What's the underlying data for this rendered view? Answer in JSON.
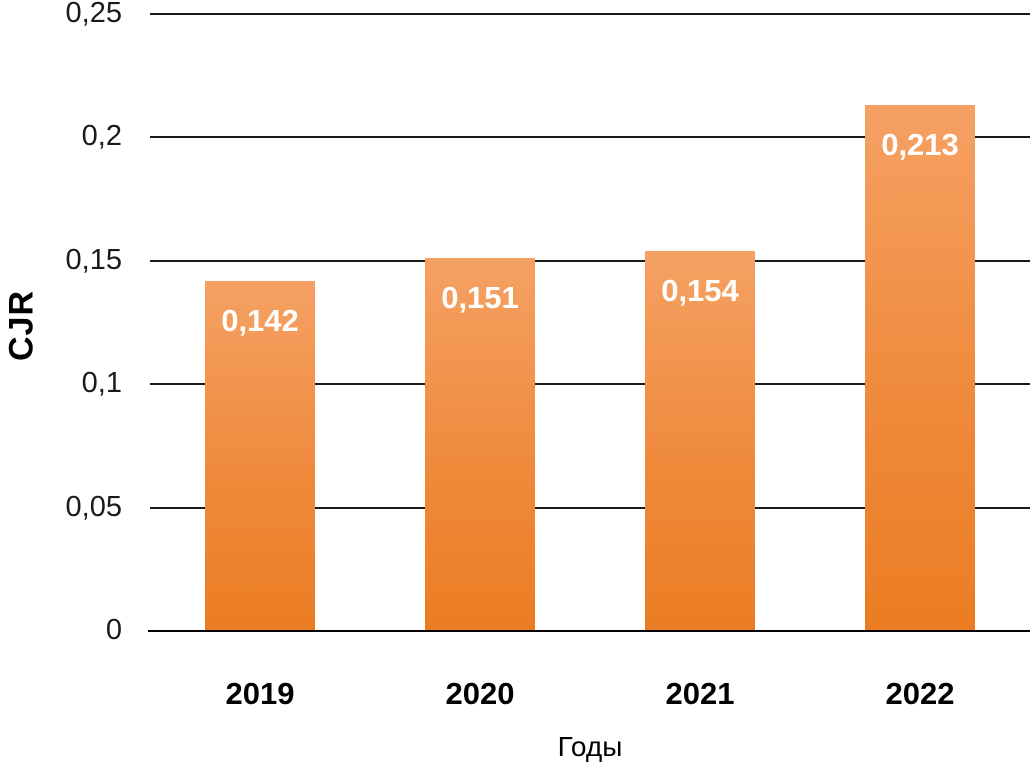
{
  "chart_data": {
    "type": "bar",
    "title": "",
    "xlabel": "Годы",
    "ylabel": "CJR",
    "categories": [
      "2019",
      "2020",
      "2021",
      "2022"
    ],
    "values": [
      0.142,
      0.151,
      0.154,
      0.213
    ],
    "value_labels": [
      "0,142",
      "0,151",
      "0,154",
      "0,213"
    ],
    "yticks": [
      {
        "value": 0,
        "label": "0"
      },
      {
        "value": 0.05,
        "label": "0,05"
      },
      {
        "value": 0.1,
        "label": "0,1"
      },
      {
        "value": 0.15,
        "label": "0,15"
      },
      {
        "value": 0.2,
        "label": "0,2"
      },
      {
        "value": 0.25,
        "label": "0,25"
      }
    ],
    "ylim": [
      0,
      0.25
    ],
    "grid": true,
    "legend_position": "none",
    "decimal_separator": ",",
    "colors": {
      "bar_gradient_top": "#F5A164",
      "bar_gradient_bottom": "#EC7C22",
      "bar_value_label": "#FFFFFF",
      "gridline": "#1A1A1A",
      "axis_text": "#000000",
      "background": "#FFFFFF"
    }
  }
}
